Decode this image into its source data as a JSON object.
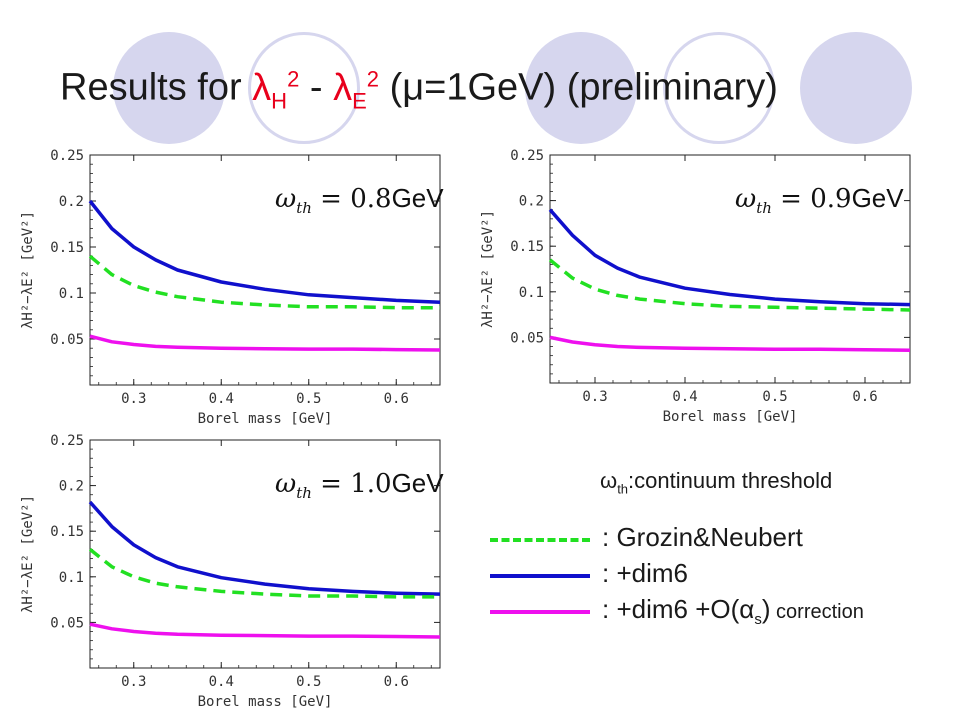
{
  "title": {
    "prefix": "Results for ",
    "lambda_h": "λ",
    "h_sub": "H",
    "h_sup": "2",
    "minus": " - ",
    "lambda_e": "λ",
    "e_sub": "E",
    "e_sup": "2",
    "suffix": " (μ=1GeV) (preliminary)"
  },
  "colors": {
    "grozin_neubert": "#22e022",
    "dim6": "#1010cc",
    "dim6_alpha": "#ee10ee",
    "decor_circle": "#d6d6ee",
    "title_red": "#e8001c"
  },
  "threshold_note": {
    "symbol": "ω",
    "sub": "th",
    "text": ":continuum threshold"
  },
  "legend": [
    {
      "series": "grozin_neubert",
      "label": ": Grozin&Neubert",
      "style": "dashed"
    },
    {
      "series": "dim6",
      "label": ": +dim6",
      "style": "solid"
    },
    {
      "series": "dim6_alpha",
      "label_main": ": +dim6 +O(α",
      "label_sub": "s",
      "label_close": ")",
      "label_small": " correction",
      "style": "solid"
    }
  ],
  "chart_data": [
    {
      "type": "line",
      "omega_label": {
        "symbol": "ω",
        "sub": "th",
        "eq": " = ",
        "value": "0.8",
        "unit": "GeV"
      },
      "xlabel": "Borel mass [GeV]",
      "ylabel": "λH²−λE² [GeV²]",
      "xlim": [
        0.25,
        0.65
      ],
      "ylim": [
        0.0,
        0.25
      ],
      "xticks": [
        "0.3",
        "0.4",
        "0.5",
        "0.6"
      ],
      "xtick_values": [
        0.3,
        0.4,
        0.5,
        0.6
      ],
      "yticks": [
        "0.05",
        "0.1",
        "0.15",
        "0.2",
        "0.25"
      ],
      "ytick_values": [
        0.05,
        0.1,
        0.15,
        0.2,
        0.25
      ],
      "x": [
        0.25,
        0.275,
        0.3,
        0.325,
        0.35,
        0.4,
        0.45,
        0.5,
        0.55,
        0.6,
        0.65
      ],
      "series": [
        {
          "key": "dim6",
          "values": [
            0.2,
            0.17,
            0.15,
            0.136,
            0.125,
            0.112,
            0.104,
            0.098,
            0.095,
            0.092,
            0.09
          ],
          "style": "solid"
        },
        {
          "key": "grozin_neubert",
          "values": [
            0.14,
            0.12,
            0.108,
            0.101,
            0.096,
            0.09,
            0.087,
            0.085,
            0.085,
            0.084,
            0.084
          ],
          "style": "dashed"
        },
        {
          "key": "dim6_alpha",
          "values": [
            0.053,
            0.047,
            0.044,
            0.042,
            0.041,
            0.04,
            0.0395,
            0.039,
            0.039,
            0.0385,
            0.038
          ],
          "style": "solid"
        }
      ]
    },
    {
      "type": "line",
      "omega_label": {
        "symbol": "ω",
        "sub": "th",
        "eq": " = ",
        "value": "0.9",
        "unit": "GeV"
      },
      "xlabel": "Borel mass [GeV]",
      "ylabel": "λH²−λE² [GeV²]",
      "xlim": [
        0.25,
        0.65
      ],
      "ylim": [
        0.0,
        0.25
      ],
      "xticks": [
        "0.3",
        "0.4",
        "0.5",
        "0.6"
      ],
      "xtick_values": [
        0.3,
        0.4,
        0.5,
        0.6
      ],
      "yticks": [
        "0.05",
        "0.1",
        "0.15",
        "0.2",
        "0.25"
      ],
      "ytick_values": [
        0.05,
        0.1,
        0.15,
        0.2,
        0.25
      ],
      "x": [
        0.25,
        0.275,
        0.3,
        0.325,
        0.35,
        0.4,
        0.45,
        0.5,
        0.55,
        0.6,
        0.65
      ],
      "series": [
        {
          "key": "dim6",
          "values": [
            0.19,
            0.162,
            0.14,
            0.126,
            0.116,
            0.104,
            0.097,
            0.092,
            0.089,
            0.087,
            0.086
          ],
          "style": "solid"
        },
        {
          "key": "grozin_neubert",
          "values": [
            0.135,
            0.115,
            0.103,
            0.096,
            0.092,
            0.087,
            0.084,
            0.083,
            0.082,
            0.081,
            0.08
          ],
          "style": "dashed"
        },
        {
          "key": "dim6_alpha",
          "values": [
            0.05,
            0.045,
            0.042,
            0.04,
            0.039,
            0.038,
            0.0375,
            0.037,
            0.037,
            0.0365,
            0.036
          ],
          "style": "solid"
        }
      ]
    },
    {
      "type": "line",
      "omega_label": {
        "symbol": "ω",
        "sub": "th",
        "eq": " = ",
        "value": "1.0",
        "unit": "GeV"
      },
      "xlabel": "Borel mass [GeV]",
      "ylabel": "λH²−λE² [GeV²]",
      "xlim": [
        0.25,
        0.65
      ],
      "ylim": [
        0.0,
        0.25
      ],
      "xticks": [
        "0.3",
        "0.4",
        "0.5",
        "0.6"
      ],
      "xtick_values": [
        0.3,
        0.4,
        0.5,
        0.6
      ],
      "yticks": [
        "0.05",
        "0.1",
        "0.15",
        "0.2",
        "0.25"
      ],
      "ytick_values": [
        0.05,
        0.1,
        0.15,
        0.2,
        0.25
      ],
      "x": [
        0.25,
        0.275,
        0.3,
        0.325,
        0.35,
        0.4,
        0.45,
        0.5,
        0.55,
        0.6,
        0.65
      ],
      "series": [
        {
          "key": "dim6",
          "values": [
            0.182,
            0.155,
            0.135,
            0.121,
            0.111,
            0.099,
            0.092,
            0.087,
            0.084,
            0.082,
            0.081
          ],
          "style": "solid"
        },
        {
          "key": "grozin_neubert",
          "values": [
            0.13,
            0.111,
            0.1,
            0.093,
            0.089,
            0.084,
            0.081,
            0.079,
            0.079,
            0.078,
            0.078
          ],
          "style": "dashed"
        },
        {
          "key": "dim6_alpha",
          "values": [
            0.048,
            0.043,
            0.04,
            0.038,
            0.037,
            0.036,
            0.0355,
            0.035,
            0.035,
            0.0345,
            0.034
          ],
          "style": "solid"
        }
      ]
    }
  ]
}
